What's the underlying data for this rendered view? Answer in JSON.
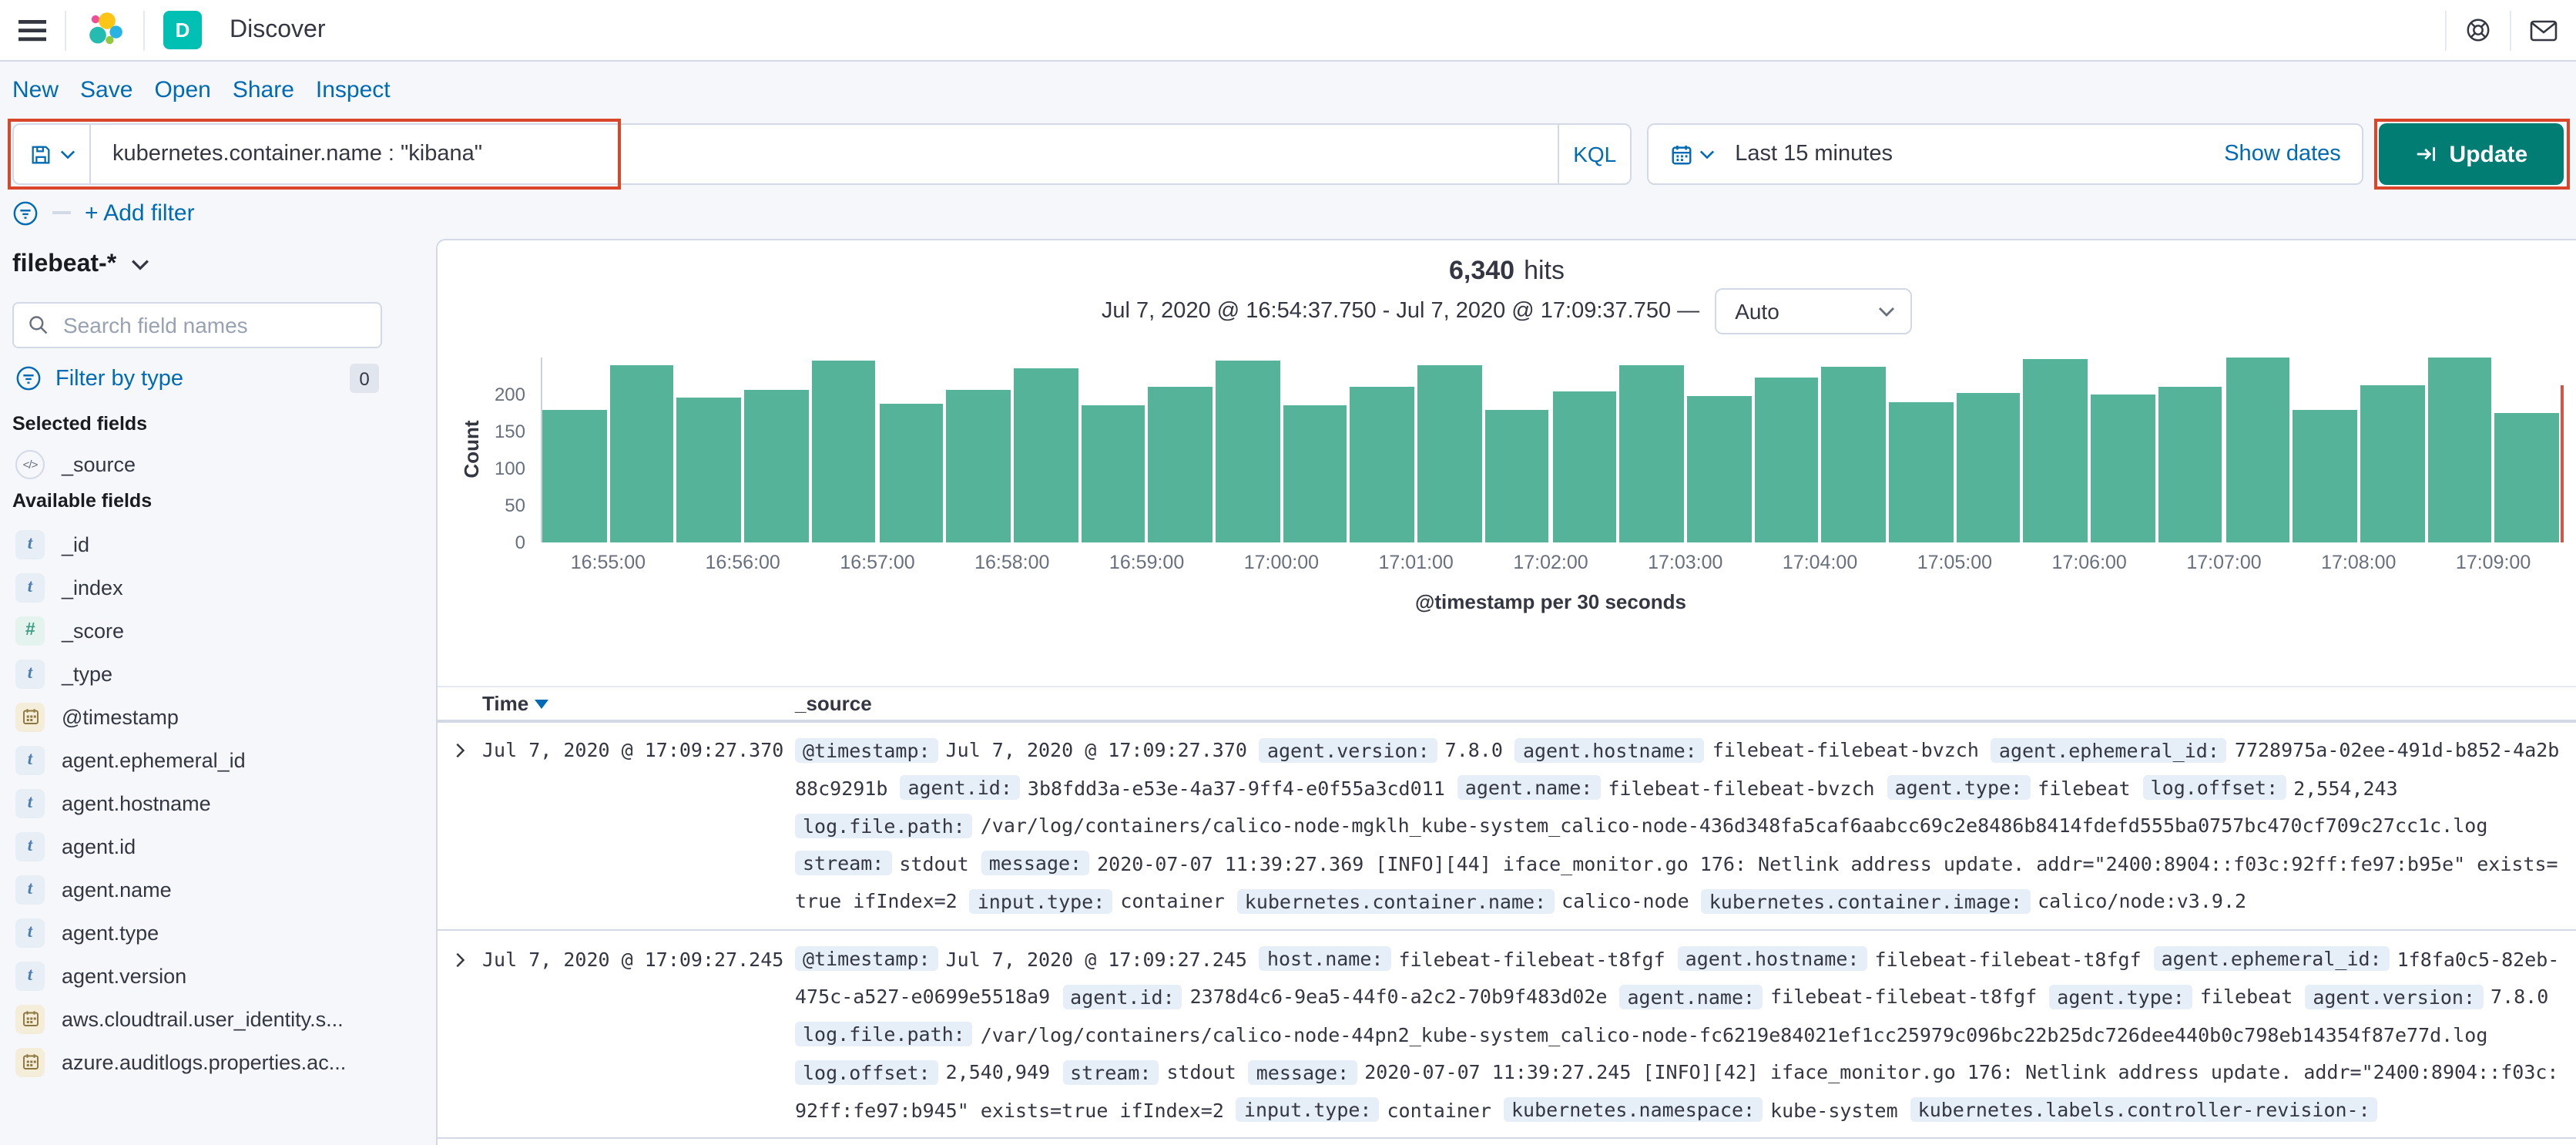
{
  "header": {
    "app_badge": "D",
    "title": "Discover"
  },
  "nav": {
    "items": [
      "New",
      "Save",
      "Open",
      "Share",
      "Inspect"
    ]
  },
  "query_bar": {
    "query": "kubernetes.container.name : \"kibana\"",
    "language": "KQL"
  },
  "time_picker": {
    "range_label": "Last 15 minutes",
    "show_dates_label": "Show dates",
    "update_label": "Update"
  },
  "filter_bar": {
    "add_filter_label": "+ Add filter"
  },
  "sidebar": {
    "index_pattern": "filebeat-*",
    "search_placeholder": "Search field names",
    "filter_by_type_label": "Filter by type",
    "filter_count": "0",
    "selected_fields_label": "Selected fields",
    "selected_fields": [
      {
        "name": "_source",
        "type": "source"
      }
    ],
    "available_fields_label": "Available fields",
    "available_fields": [
      {
        "name": "_id",
        "type": "string"
      },
      {
        "name": "_index",
        "type": "string"
      },
      {
        "name": "_score",
        "type": "number"
      },
      {
        "name": "_type",
        "type": "string"
      },
      {
        "name": "@timestamp",
        "type": "date"
      },
      {
        "name": "agent.ephemeral_id",
        "type": "string"
      },
      {
        "name": "agent.hostname",
        "type": "string"
      },
      {
        "name": "agent.id",
        "type": "string"
      },
      {
        "name": "agent.name",
        "type": "string"
      },
      {
        "name": "agent.type",
        "type": "string"
      },
      {
        "name": "agent.version",
        "type": "string"
      },
      {
        "name": "aws.cloudtrail.user_identity.s...",
        "type": "date"
      },
      {
        "name": "azure.auditlogs.properties.ac...",
        "type": "date"
      }
    ]
  },
  "results": {
    "hits_count": "6,340",
    "hits_label": "hits",
    "time_range": "Jul 7, 2020 @ 16:54:37.750 - Jul 7, 2020 @ 17:09:37.750 —",
    "interval_label": "Auto"
  },
  "chart_data": {
    "type": "bar",
    "title": "6,340 hits",
    "xlabel": "@timestamp per 30 seconds",
    "ylabel": "Count",
    "ylim": [
      0,
      250
    ],
    "yticks": [
      0,
      50,
      100,
      150,
      200
    ],
    "x_tick_labels": [
      "16:55:00",
      "16:56:00",
      "16:57:00",
      "16:58:00",
      "16:59:00",
      "17:00:00",
      "17:01:00",
      "17:02:00",
      "17:03:00",
      "17:04:00",
      "17:05:00",
      "17:06:00",
      "17:07:00",
      "17:08:00",
      "17:09:00"
    ],
    "x": [
      "16:54:30",
      "16:55:00",
      "16:55:30",
      "16:56:00",
      "16:56:30",
      "16:57:00",
      "16:57:30",
      "16:58:00",
      "16:58:30",
      "16:59:00",
      "16:59:30",
      "17:00:00",
      "17:00:30",
      "17:01:00",
      "17:01:30",
      "17:02:00",
      "17:02:30",
      "17:03:00",
      "17:03:30",
      "17:04:00",
      "17:04:30",
      "17:05:00",
      "17:05:30",
      "17:06:00",
      "17:06:30",
      "17:07:00",
      "17:07:30",
      "17:08:00",
      "17:08:30",
      "17:09:00"
    ],
    "values": [
      180,
      240,
      195,
      207,
      245,
      188,
      207,
      235,
      186,
      210,
      245,
      185,
      210,
      240,
      180,
      205,
      240,
      197,
      222,
      238,
      190,
      203,
      247,
      200,
      210,
      250,
      180,
      212,
      250,
      176
    ],
    "grid": false,
    "bar_color": "#54B399",
    "current_time_marker_color": "#D0564A"
  },
  "table": {
    "columns": [
      "Time",
      "_source"
    ],
    "rows": [
      {
        "time": "Jul 7, 2020 @ 17:09:27.370",
        "source": [
          {
            "k": "@timestamp",
            "v": "Jul 7, 2020 @ 17:09:27.370"
          },
          {
            "k": "agent.version",
            "v": "7.8.0"
          },
          {
            "k": "agent.hostname",
            "v": "filebeat-filebeat-bvzch"
          },
          {
            "k": "agent.ephemeral_id",
            "v": "7728975a-02ee-491d-b852-4a2b88c9291b"
          },
          {
            "k": "agent.id",
            "v": "3b8fdd3a-e53e-4a37-9ff4-e0f55a3cd011"
          },
          {
            "k": "agent.name",
            "v": "filebeat-filebeat-bvzch"
          },
          {
            "k": "agent.type",
            "v": "filebeat"
          },
          {
            "k": "log.offset",
            "v": "2,554,243"
          },
          {
            "k": "log.file.path",
            "v": "/var/log/containers/calico-node-mgklh_kube-system_calico-node-436d348fa5caf6aabcc69c2e8486b8414fdefd555ba0757bc470cf709c27cc1c.log"
          },
          {
            "k": "stream",
            "v": "stdout"
          },
          {
            "k": "message",
            "v": "2020-07-07 11:39:27.369 [INFO][44] iface_monitor.go 176: Netlink address update. addr=\"2400:8904::f03c:92ff:fe97:b95e\" exists=true ifIndex=2"
          },
          {
            "k": "input.type",
            "v": "container"
          },
          {
            "k": "kubernetes.container.name",
            "v": "calico-node"
          },
          {
            "k": "kubernetes.container.image",
            "v": "calico/node:v3.9.2"
          }
        ]
      },
      {
        "time": "Jul 7, 2020 @ 17:09:27.245",
        "source": [
          {
            "k": "@timestamp",
            "v": "Jul 7, 2020 @ 17:09:27.245"
          },
          {
            "k": "host.name",
            "v": "filebeat-filebeat-t8fgf"
          },
          {
            "k": "agent.hostname",
            "v": "filebeat-filebeat-t8fgf"
          },
          {
            "k": "agent.ephemeral_id",
            "v": "1f8fa0c5-82eb-475c-a527-e0699e5518a9"
          },
          {
            "k": "agent.id",
            "v": "2378d4c6-9ea5-44f0-a2c2-70b9f483d02e"
          },
          {
            "k": "agent.name",
            "v": "filebeat-filebeat-t8fgf"
          },
          {
            "k": "agent.type",
            "v": "filebeat"
          },
          {
            "k": "agent.version",
            "v": "7.8.0"
          },
          {
            "k": "log.file.path",
            "v": "/var/log/containers/calico-node-44pn2_kube-system_calico-node-fc6219e84021ef1cc25979c096bc22b25dc726dee440b0c798eb14354f87e77d.log"
          },
          {
            "k": "log.offset",
            "v": "2,540,949"
          },
          {
            "k": "stream",
            "v": "stdout"
          },
          {
            "k": "message",
            "v": "2020-07-07 11:39:27.245 [INFO][42] iface_monitor.go 176: Netlink address update. addr=\"2400:8904::f03c:92ff:fe97:b945\" exists=true ifIndex=2"
          },
          {
            "k": "input.type",
            "v": "container"
          },
          {
            "k": "kubernetes.namespace",
            "v": "kube-system"
          },
          {
            "k": "kubernetes.labels.controller-revision-",
            "v": ""
          }
        ]
      }
    ]
  },
  "colors": {
    "accent_blue": "#006BB4",
    "update_button_teal": "#017D73",
    "bar_green": "#54B399",
    "annotation_red": "#D9472B",
    "app_badge_teal": "#00BFB3",
    "time_marker_red": "#D0564A"
  }
}
